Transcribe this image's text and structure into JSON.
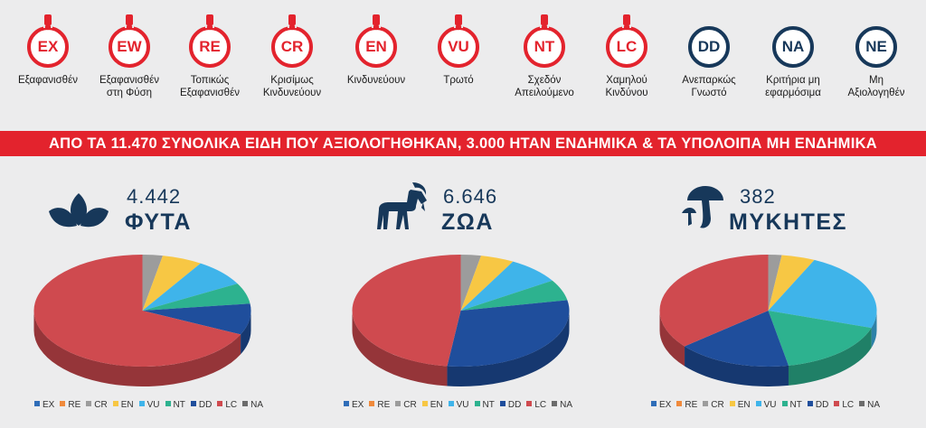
{
  "categories": [
    {
      "code": "EX",
      "label": "Εξαφανισθέν",
      "style": "red"
    },
    {
      "code": "EW",
      "label": "Εξαφανισθέν\nστη Φύση",
      "style": "red"
    },
    {
      "code": "RE",
      "label": "Τοπικώς\nΕξαφανισθέν",
      "style": "red"
    },
    {
      "code": "CR",
      "label": "Κρισίμως\nΚινδυνεύουν",
      "style": "red"
    },
    {
      "code": "EN",
      "label": "Κινδυνεύουν",
      "style": "red"
    },
    {
      "code": "VU",
      "label": "Τρωτό",
      "style": "red"
    },
    {
      "code": "NT",
      "label": "Σχεδόν\nΑπειλούμενο",
      "style": "red"
    },
    {
      "code": "LC",
      "label": "Χαμηλού\nΚινδύνου",
      "style": "red"
    },
    {
      "code": "DD",
      "label": "Ανεπαρκώς\nΓνωστό",
      "style": "navy"
    },
    {
      "code": "NA",
      "label": "Κριτήρια μη\nεφαρμόσιμα",
      "style": "navy"
    },
    {
      "code": "NE",
      "label": "Μη\nΑξιολογηθέν",
      "style": "navy"
    }
  ],
  "banner": "ΑΠΟ ΤΑ 11.470 ΣΥΝΟΛΙΚΑ ΕΙΔΗ ΠΟΥ ΑΞΙΟΛΟΓΗΘΗΚΑΝ, 3.000 ΗΤΑΝ ΕΝΔΗΜΙΚΑ & ΤΑ ΥΠΟΛΟΙΠΑ ΜΗ ΕΝΔΗΜΙΚΑ",
  "colors": {
    "red": "#e3232d",
    "navy": "#17385a",
    "EX": "#2f6db8",
    "RE": "#f08a3c",
    "CR": "#9c9c9c",
    "EN": "#f7c744",
    "VU": "#3fb4ea",
    "NT": "#2db28f",
    "DD": "#1f4e9c",
    "LC": "#cf4a4f",
    "NA": "#6b6b6b"
  },
  "groups": [
    {
      "count": "4.442",
      "name": "ΦΥΤΑ",
      "icon": "leaves-icon"
    },
    {
      "count": "6.646",
      "name": "ΖΩΑ",
      "icon": "goat-icon"
    },
    {
      "count": "382",
      "name": "ΜΥΚΗΤΕΣ",
      "icon": "mushroom-icon"
    }
  ],
  "chart_data": [
    {
      "type": "pie",
      "title": "ΦΥΤΑ",
      "legend": [
        "EX",
        "RE",
        "CR",
        "EN",
        "VU",
        "NT",
        "DD",
        "LC",
        "NA"
      ],
      "slices": [
        {
          "label": "EX",
          "value": 0
        },
        {
          "label": "RE",
          "value": 0
        },
        {
          "label": "CR",
          "value": 3
        },
        {
          "label": "EN",
          "value": 6
        },
        {
          "label": "VU",
          "value": 8
        },
        {
          "label": "NT",
          "value": 6
        },
        {
          "label": "DD",
          "value": 9
        },
        {
          "label": "LC",
          "value": 68
        },
        {
          "label": "NA",
          "value": 0
        }
      ]
    },
    {
      "type": "pie",
      "title": "ΖΩΑ",
      "legend": [
        "EX",
        "RE",
        "CR",
        "EN",
        "VU",
        "NT",
        "DD",
        "LC",
        "NA"
      ],
      "slices": [
        {
          "label": "EX",
          "value": 0
        },
        {
          "label": "RE",
          "value": 0
        },
        {
          "label": "CR",
          "value": 3
        },
        {
          "label": "EN",
          "value": 5
        },
        {
          "label": "VU",
          "value": 8
        },
        {
          "label": "NT",
          "value": 6
        },
        {
          "label": "DD",
          "value": 30
        },
        {
          "label": "LC",
          "value": 48
        },
        {
          "label": "NA",
          "value": 0
        }
      ]
    },
    {
      "type": "pie",
      "title": "ΜΥΚΗΤΕΣ",
      "legend": [
        "EX",
        "RE",
        "CR",
        "EN",
        "VU",
        "NT",
        "DD",
        "LC",
        "NA"
      ],
      "slices": [
        {
          "label": "EX",
          "value": 0
        },
        {
          "label": "RE",
          "value": 0
        },
        {
          "label": "CR",
          "value": 2
        },
        {
          "label": "EN",
          "value": 5
        },
        {
          "label": "VU",
          "value": 23
        },
        {
          "label": "NT",
          "value": 17
        },
        {
          "label": "DD",
          "value": 17
        },
        {
          "label": "LC",
          "value": 36
        },
        {
          "label": "NA",
          "value": 0
        }
      ]
    }
  ]
}
